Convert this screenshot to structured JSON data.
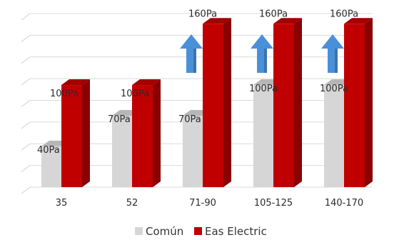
{
  "chart_data": {
    "type": "bar",
    "style": "3d-clustered",
    "categories": [
      "35",
      "52",
      "71-90",
      "105-125",
      "140-170"
    ],
    "series": [
      {
        "name": "Común",
        "color": "#d6d6d6",
        "values": [
          40,
          70,
          70,
          100,
          100
        ],
        "labels": [
          "40Pa",
          "70Pa",
          "70Pa",
          "100Pa",
          "100Pa"
        ]
      },
      {
        "name": "Eas Electric",
        "color": "#c00000",
        "values": [
          100,
          100,
          160,
          160,
          160
        ],
        "labels": [
          "100Pa",
          "100Pa",
          "160Pa",
          "160Pa",
          "160Pa"
        ]
      }
    ],
    "ylim": [
      0,
      170
    ],
    "grid": true,
    "legend": "bottom-center",
    "annotations": [
      {
        "type": "up-arrow",
        "category": "71-90",
        "color": "#4a90d9"
      },
      {
        "type": "up-arrow",
        "category": "105-125",
        "color": "#4a90d9"
      },
      {
        "type": "up-arrow",
        "category": "140-170",
        "color": "#4a90d9"
      }
    ]
  }
}
